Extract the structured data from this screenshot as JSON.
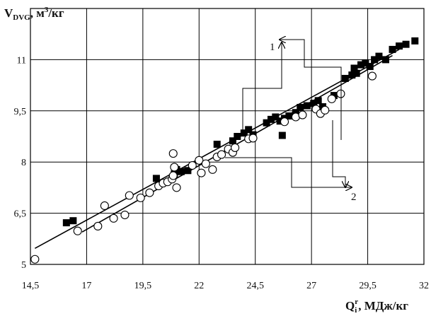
{
  "chart_data": {
    "type": "scatter",
    "title": "",
    "xlabel": {
      "main": "Q",
      "sub": "i",
      "sup": "r",
      "rest": ", МДж/кг"
    },
    "ylabel": {
      "main": "V",
      "sub": "DVG",
      "rest": ", м",
      "sup": "3",
      "rest2": "/кг"
    },
    "xlim": [
      14.5,
      32
    ],
    "ylim": [
      5,
      12.5
    ],
    "x_ticks": [
      14.5,
      17,
      19.5,
      22,
      24.5,
      27,
      29.5,
      32
    ],
    "x_tick_labels": [
      "14,5",
      "17",
      "19,5",
      "22",
      "24,5",
      "27",
      "29,5",
      "32"
    ],
    "y_ticks": [
      5,
      6.5,
      8,
      9.5,
      11
    ],
    "y_tick_labels": [
      "5",
      "6,5",
      "8",
      "9,5",
      "11"
    ],
    "grid": true,
    "series": [
      {
        "marker": "filled-square",
        "points": [
          [
            16.1,
            6.22
          ],
          [
            16.4,
            6.28
          ],
          [
            20.1,
            7.52
          ],
          [
            20.9,
            7.65
          ],
          [
            21.0,
            7.78
          ],
          [
            21.2,
            7.72
          ],
          [
            21.5,
            7.75
          ],
          [
            22.8,
            8.52
          ],
          [
            23.5,
            8.62
          ],
          [
            23.7,
            8.75
          ],
          [
            24.0,
            8.85
          ],
          [
            24.2,
            8.95
          ],
          [
            24.4,
            8.8
          ],
          [
            25.0,
            9.15
          ],
          [
            25.2,
            9.25
          ],
          [
            25.4,
            9.32
          ],
          [
            25.6,
            9.2
          ],
          [
            25.8,
            9.28
          ],
          [
            26.0,
            9.35
          ],
          [
            25.7,
            8.78
          ],
          [
            26.3,
            9.45
          ],
          [
            26.5,
            9.6
          ],
          [
            26.8,
            9.65
          ],
          [
            27.1,
            9.72
          ],
          [
            27.3,
            9.8
          ],
          [
            27.5,
            9.62
          ],
          [
            28.0,
            9.95
          ],
          [
            28.5,
            10.45
          ],
          [
            28.8,
            10.55
          ],
          [
            28.9,
            10.75
          ],
          [
            29.0,
            10.6
          ],
          [
            29.2,
            10.85
          ],
          [
            29.4,
            10.9
          ],
          [
            29.6,
            10.8
          ],
          [
            29.8,
            11.0
          ],
          [
            30.0,
            11.1
          ],
          [
            30.3,
            11.0
          ],
          [
            30.6,
            11.3
          ],
          [
            30.9,
            11.4
          ],
          [
            31.2,
            11.45
          ],
          [
            31.6,
            11.55
          ]
        ]
      },
      {
        "marker": "open-circle",
        "points": [
          [
            14.7,
            5.15
          ],
          [
            16.6,
            5.98
          ],
          [
            17.5,
            6.12
          ],
          [
            17.8,
            6.72
          ],
          [
            18.2,
            6.35
          ],
          [
            18.7,
            6.45
          ],
          [
            18.9,
            7.02
          ],
          [
            19.4,
            6.95
          ],
          [
            19.8,
            7.1
          ],
          [
            20.2,
            7.3
          ],
          [
            20.4,
            7.38
          ],
          [
            20.6,
            7.42
          ],
          [
            20.8,
            7.5
          ],
          [
            20.85,
            7.6
          ],
          [
            20.9,
            7.85
          ],
          [
            21.0,
            7.25
          ],
          [
            20.85,
            8.25
          ],
          [
            21.7,
            7.9
          ],
          [
            22.0,
            8.05
          ],
          [
            22.1,
            7.68
          ],
          [
            22.3,
            7.95
          ],
          [
            22.6,
            7.78
          ],
          [
            22.8,
            8.15
          ],
          [
            23.0,
            8.22
          ],
          [
            23.3,
            8.38
          ],
          [
            23.5,
            8.28
          ],
          [
            23.6,
            8.42
          ],
          [
            24.2,
            8.68
          ],
          [
            24.4,
            8.7
          ],
          [
            25.8,
            9.18
          ],
          [
            26.3,
            9.32
          ],
          [
            26.6,
            9.38
          ],
          [
            27.2,
            9.55
          ],
          [
            27.4,
            9.42
          ],
          [
            27.6,
            9.52
          ],
          [
            27.9,
            9.85
          ],
          [
            28.3,
            10.0
          ],
          [
            29.7,
            10.52
          ]
        ]
      }
    ],
    "fit_lines": [
      {
        "x": [
          14.7,
          30.9
        ],
        "y": [
          5.47,
          11.3
        ]
      },
      {
        "x": [
          16.8,
          30.6
        ],
        "y": [
          5.95,
          11.12
        ]
      }
    ],
    "annotations": [
      {
        "label": "1",
        "target": "upper fit line"
      },
      {
        "label": "2",
        "target": "lower fit line"
      }
    ]
  }
}
